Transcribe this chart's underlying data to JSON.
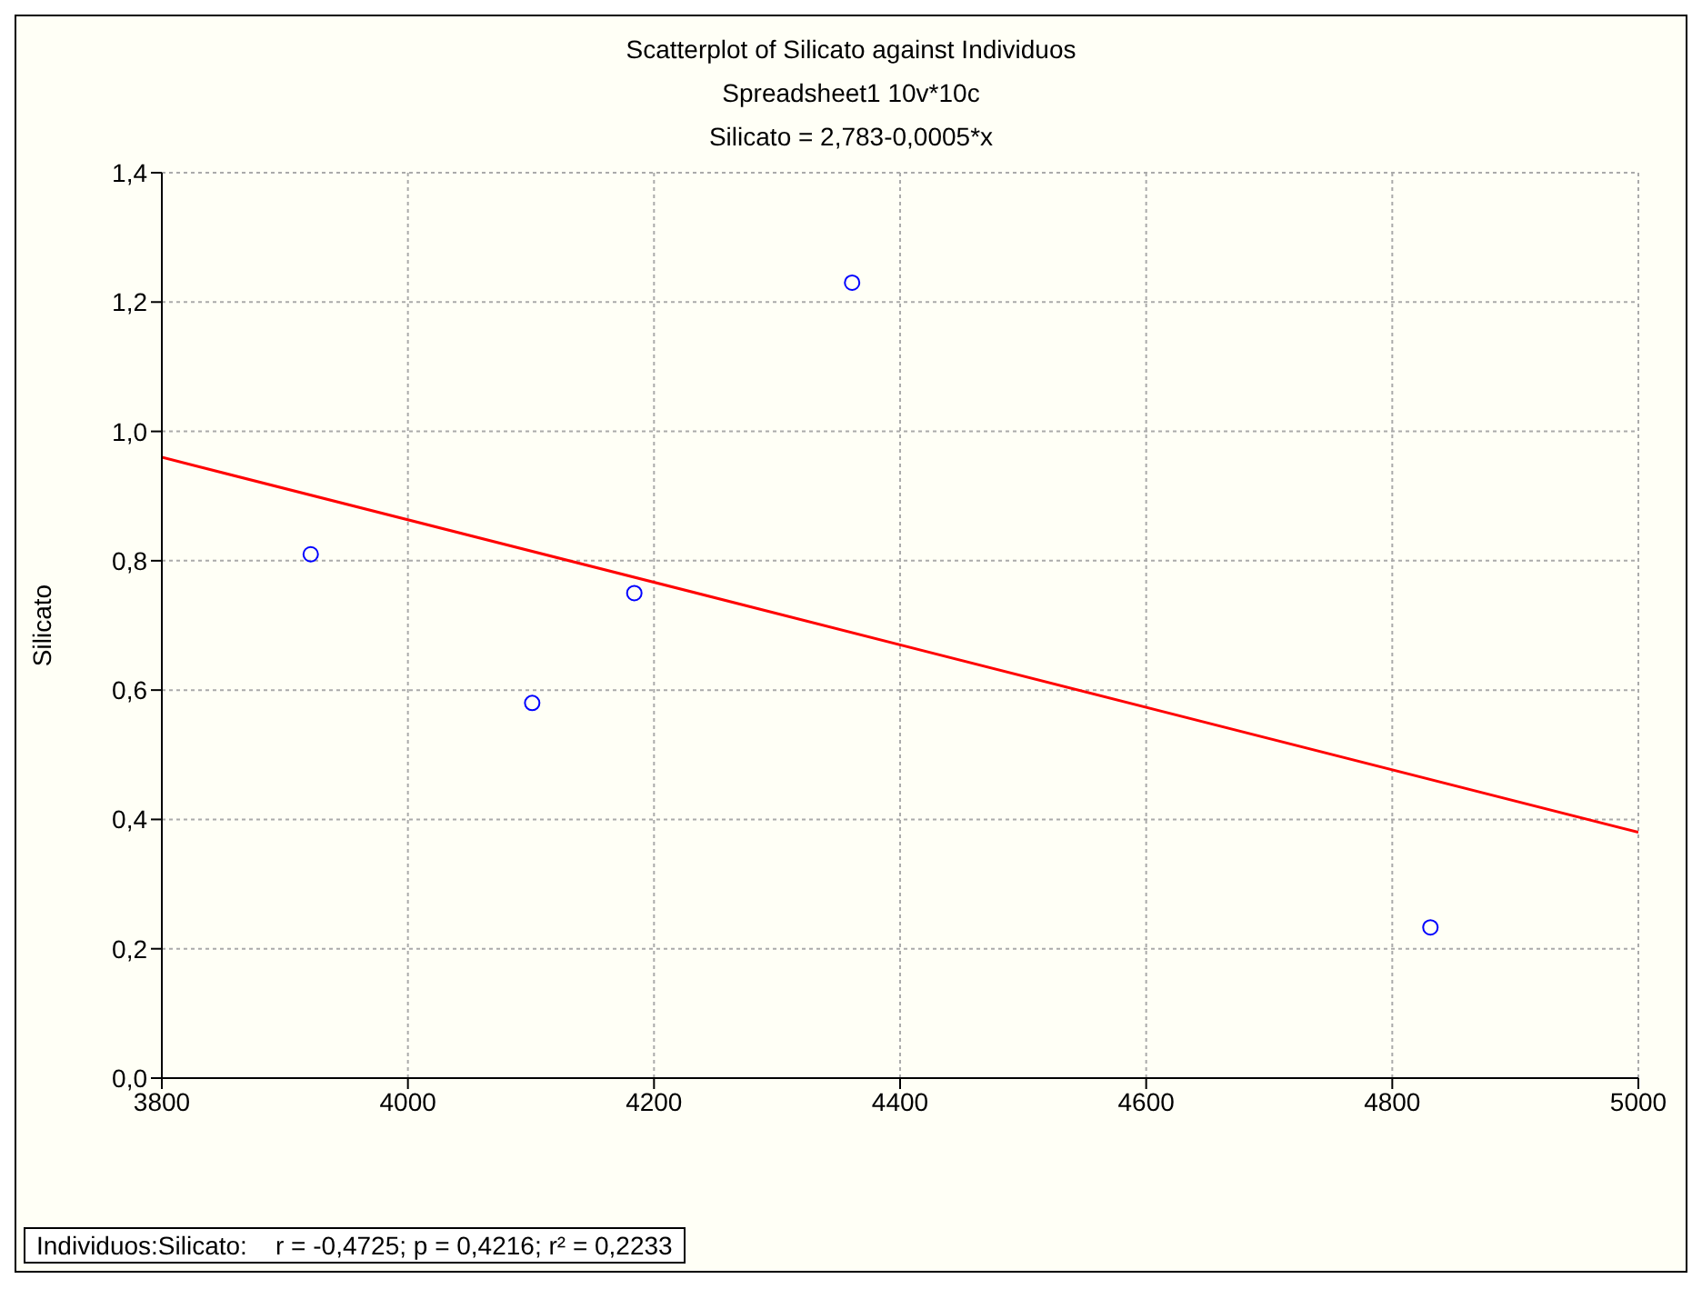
{
  "chart_data": {
    "type": "scatter",
    "title": "Scatterplot of Silicato against Individuos",
    "subtitle": "Spreadsheet1 10v*10c",
    "ylabel": "Silicato",
    "annotations": [
      "Silicato = 2,783-0,0005*x",
      "Individuos:Silicato:    r = -0,4725; p = 0,4216; r² = 0,2233"
    ],
    "series": [
      {
        "color": "#0000ff",
        "marker": "circle",
        "x": [
          3921,
          4101,
          4184,
          4361,
          4831
        ],
        "values": [
          0.81,
          0.58,
          0.75,
          1.23,
          0.233
        ]
      },
      {
        "type": "line",
        "color": "#ff0000",
        "marker": "none",
        "x": [
          3800,
          5000
        ],
        "values": [
          0.96,
          0.38
        ]
      }
    ],
    "xlim": [
      3800,
      5000
    ],
    "xticks": [
      3800,
      4000,
      4200,
      4400,
      4600,
      4800,
      5000
    ],
    "ylim": [
      0,
      1.4
    ],
    "yticks": [
      {
        "value": 0,
        "label": "0,0"
      },
      {
        "value": 0.2,
        "label": "0,2"
      },
      {
        "value": 0.4,
        "label": "0,4"
      },
      {
        "value": 0.6,
        "label": "0,6"
      },
      {
        "value": 0.8,
        "label": "0,8"
      },
      {
        "value": 1,
        "label": "1,0"
      },
      {
        "value": 1.2,
        "label": "1,2"
      },
      {
        "value": 1.4,
        "label": "1,4"
      }
    ],
    "grid": true
  }
}
